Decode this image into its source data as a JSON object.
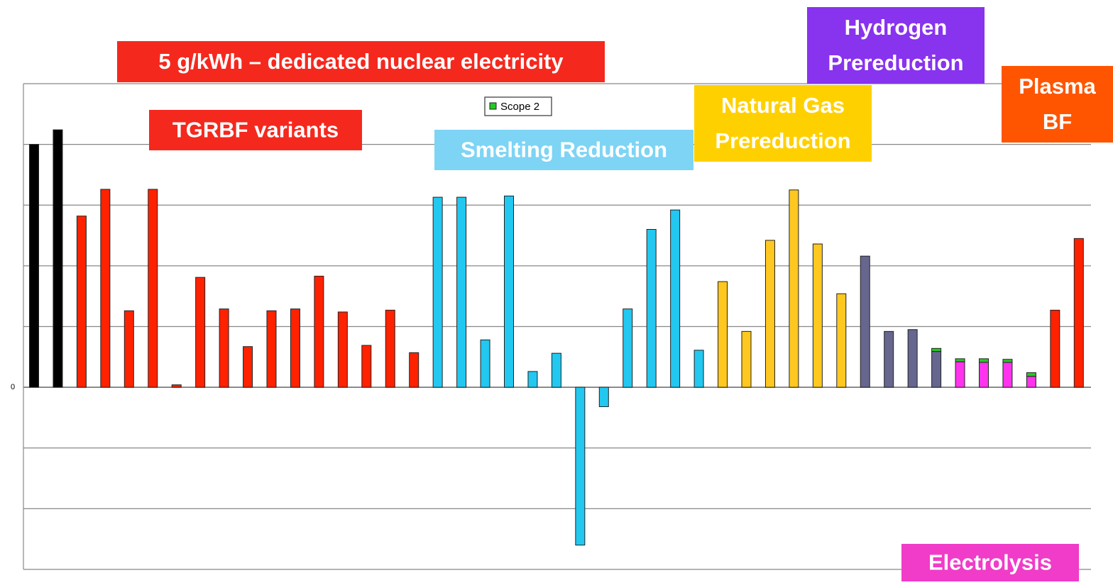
{
  "chart_data": {
    "type": "bar",
    "stacked": true,
    "categories": [
      null,
      null,
      null,
      null,
      null,
      null,
      null,
      null,
      null,
      null,
      null,
      null,
      null,
      null,
      null,
      null,
      null,
      null,
      null,
      null,
      null,
      null,
      null,
      null,
      null,
      null,
      null,
      null,
      null,
      null,
      null,
      null,
      null,
      null,
      null,
      null,
      null,
      null,
      null,
      null,
      null,
      null,
      null,
      null,
      null
    ],
    "series": [
      {
        "colors": [
          "#000000",
          "#000000",
          "#ff2200",
          "#ff2200",
          "#ff2200",
          "#ff2200",
          "#ff2200",
          "#ff2200",
          "#ff2200",
          "#ff2200",
          "#ff2200",
          "#ff2200",
          "#ff2200",
          "#ff2200",
          "#ff2200",
          "#ff2200",
          "#ff2200",
          "#22c8f0",
          "#22c8f0",
          "#22c8f0",
          "#22c8f0",
          "#22c8f0",
          "#22c8f0",
          "#22c8f0",
          "#22c8f0",
          "#22c8f0",
          "#22c8f0",
          "#22c8f0",
          "#22c8f0",
          "#ffc820",
          "#ffc820",
          "#ffc820",
          "#ffc820",
          "#ffc820",
          "#ffc820",
          "#66668f",
          "#66668f",
          "#66668f",
          "#66668f",
          "#ff33ee",
          "#ff33ee",
          "#ff33ee",
          "#ff33ee",
          "#ff2200",
          "#ff2200"
        ],
        "values": [
          4.0,
          4.24,
          2.82,
          3.26,
          1.26,
          3.26,
          0.04,
          1.81,
          1.29,
          0.67,
          1.26,
          1.29,
          1.83,
          1.24,
          0.69,
          1.27,
          0.57,
          3.13,
          3.13,
          0.78,
          3.15,
          0.26,
          0.56,
          -2.6,
          -0.32,
          1.29,
          2.6,
          2.92,
          0.61,
          1.74,
          0.92,
          2.42,
          3.25,
          2.36,
          1.54,
          2.16,
          0.92,
          0.95,
          0.59,
          0.42,
          0.41,
          0.41,
          0.18,
          1.27,
          2.45
        ]
      },
      {
        "name": "Scope 2",
        "color": "#22cc22",
        "values": [
          null,
          null,
          null,
          null,
          null,
          null,
          null,
          null,
          null,
          null,
          null,
          null,
          null,
          null,
          null,
          null,
          null,
          null,
          null,
          null,
          null,
          null,
          null,
          null,
          null,
          null,
          null,
          null,
          null,
          null,
          null,
          null,
          null,
          null,
          null,
          null,
          null,
          null,
          0.05,
          0.05,
          0.06,
          0.05,
          0.06,
          null,
          null
        ]
      }
    ],
    "ylim": [
      -3,
      5
    ],
    "yticks": [
      0
    ],
    "grid_lines": [
      -3,
      -2,
      -1,
      1,
      2,
      3,
      4,
      5
    ],
    "grid": true,
    "annotations": [
      {
        "lines": [
          "5 g/kWh – dedicated nuclear electricity"
        ],
        "color": "#f5281e"
      },
      {
        "lines": [
          "TGRBF variants"
        ],
        "color": "#f5281e"
      },
      {
        "lines": [
          "Smelting Reduction"
        ],
        "color": "#7dd4f5"
      },
      {
        "lines": [
          "Natural Gas",
          "Prereduction"
        ],
        "color": "#ffd000"
      },
      {
        "lines": [
          "Hydrogen",
          "Prereduction"
        ],
        "color": "#8833ee"
      },
      {
        "lines": [
          "Plasma",
          "BF"
        ],
        "color": "#ff5500"
      },
      {
        "lines": [
          "Electrolysis"
        ],
        "color": "#f03cc8"
      }
    ]
  }
}
